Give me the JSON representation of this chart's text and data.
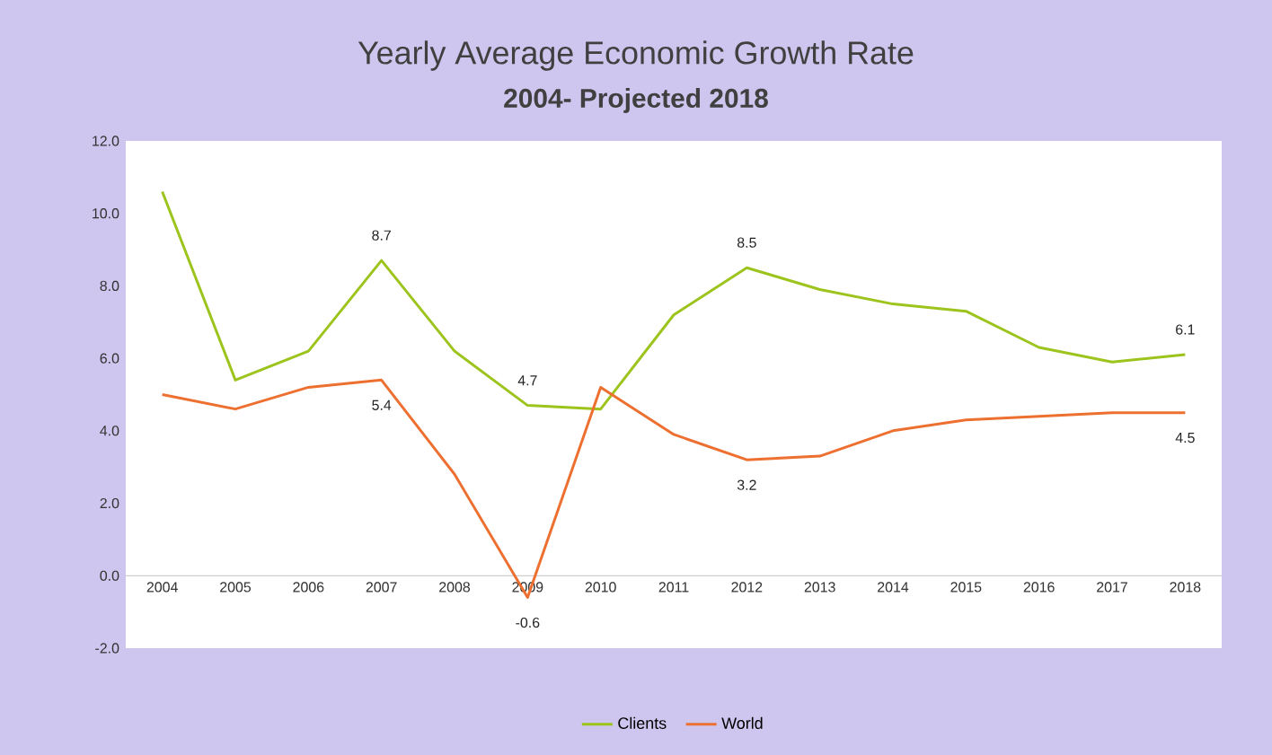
{
  "chart_data": {
    "type": "line",
    "title": "Yearly Average Economic Growth Rate",
    "subtitle": "2004- Projected 2018",
    "categories": [
      "2004",
      "2005",
      "2006",
      "2007",
      "2008",
      "2009",
      "2010",
      "2011",
      "2012",
      "2013",
      "2014",
      "2015",
      "2016",
      "2017",
      "2018"
    ],
    "series": [
      {
        "name": "Clients",
        "color": "#9dc41d",
        "values": [
          10.6,
          5.4,
          6.2,
          8.7,
          6.2,
          4.7,
          4.6,
          7.2,
          8.5,
          7.9,
          7.5,
          7.3,
          6.3,
          5.9,
          6.1
        ],
        "value_labels": [
          null,
          null,
          null,
          "8.7",
          null,
          "4.7",
          null,
          null,
          "8.5",
          null,
          null,
          null,
          null,
          null,
          "6.1"
        ]
      },
      {
        "name": "World",
        "color": "#ed7031",
        "values": [
          5.0,
          4.6,
          5.2,
          5.4,
          2.8,
          -0.6,
          5.2,
          3.9,
          3.2,
          3.3,
          4.0,
          4.3,
          4.4,
          4.5,
          4.5
        ],
        "value_labels": [
          null,
          null,
          null,
          "5.4",
          null,
          "-0.6",
          null,
          null,
          "3.2",
          null,
          null,
          null,
          null,
          null,
          "4.5"
        ]
      }
    ],
    "ylim": [
      -2,
      12
    ],
    "yticks": [
      {
        "value": -2,
        "label": "-2.0"
      },
      {
        "value": 0,
        "label": "0.0"
      },
      {
        "value": 2,
        "label": "2.0"
      },
      {
        "value": 4,
        "label": "4.0"
      },
      {
        "value": 6,
        "label": "6.0"
      },
      {
        "value": 8,
        "label": "8.0"
      },
      {
        "value": 10,
        "label": "10.0"
      },
      {
        "value": 12,
        "label": "12.0"
      }
    ],
    "legend": "bottom"
  }
}
